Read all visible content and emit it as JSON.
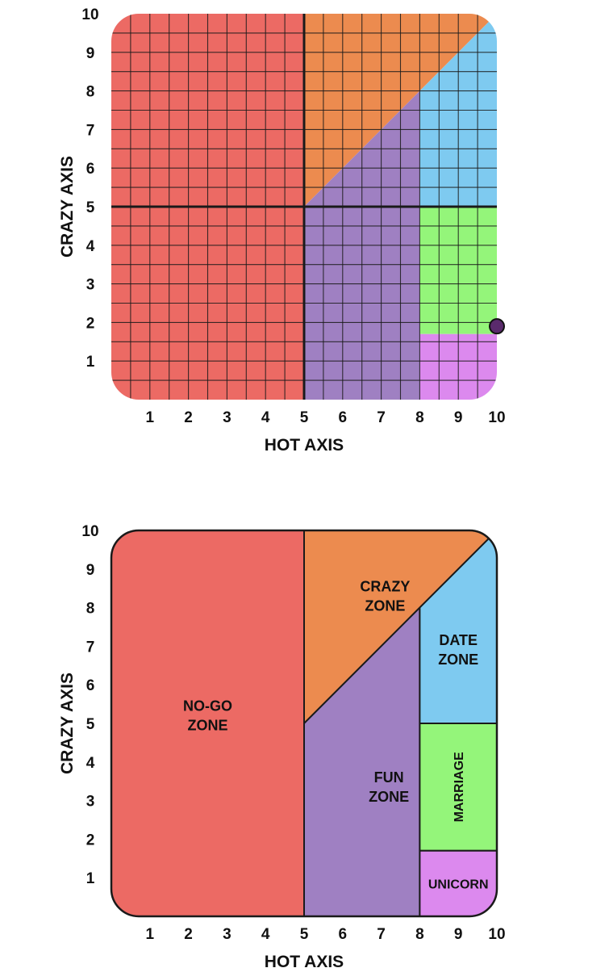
{
  "colors": {
    "nogo": "#ec6a64",
    "crazy": "#ec8b4f",
    "fun": "#9f80c2",
    "date": "#7ecaf0",
    "marriage": "#94f57a",
    "unicorn": "#dc89ee",
    "point": "#5a2a6c",
    "line": "#1a1a1a"
  },
  "chart_data": [
    {
      "type": "scatter",
      "title": "",
      "xlabel": "HOT AXIS",
      "ylabel": "CRAZY AXIS",
      "xlim": [
        0,
        10
      ],
      "ylim": [
        0,
        10
      ],
      "x_ticks": [
        "1",
        "2",
        "3",
        "4",
        "5",
        "6",
        "7",
        "8",
        "9",
        "10"
      ],
      "y_ticks": [
        "1",
        "2",
        "3",
        "4",
        "5",
        "6",
        "7",
        "8",
        "9",
        "10"
      ],
      "grid": true,
      "grid_step": 0.5,
      "zones": [
        {
          "name": "no-go",
          "color_key": "nogo",
          "polygon": [
            [
              0,
              0
            ],
            [
              5,
              0
            ],
            [
              5,
              10
            ],
            [
              0,
              10
            ]
          ]
        },
        {
          "name": "crazy",
          "color_key": "crazy",
          "polygon": [
            [
              5,
              5
            ],
            [
              5,
              10
            ],
            [
              10,
              10
            ]
          ]
        },
        {
          "name": "fun",
          "color_key": "fun",
          "polygon": [
            [
              5,
              0
            ],
            [
              8,
              0
            ],
            [
              8,
              8
            ],
            [
              5,
              5
            ]
          ]
        },
        {
          "name": "date",
          "color_key": "date",
          "polygon": [
            [
              8,
              5
            ],
            [
              10,
              5
            ],
            [
              10,
              10
            ],
            [
              8,
              8
            ]
          ]
        },
        {
          "name": "marriage",
          "color_key": "marriage",
          "polygon": [
            [
              8,
              1.7
            ],
            [
              10,
              1.7
            ],
            [
              10,
              5
            ],
            [
              8,
              5
            ]
          ]
        },
        {
          "name": "unicorn",
          "color_key": "unicorn",
          "polygon": [
            [
              8,
              0
            ],
            [
              10,
              0
            ],
            [
              10,
              1.7
            ],
            [
              8,
              1.7
            ]
          ]
        }
      ],
      "points": [
        {
          "x": 10,
          "y": 1.9
        }
      ]
    },
    {
      "type": "area",
      "title": "",
      "xlabel": "HOT AXIS",
      "ylabel": "CRAZY AXIS",
      "xlim": [
        0,
        10
      ],
      "ylim": [
        0,
        10
      ],
      "x_ticks": [
        "1",
        "2",
        "3",
        "4",
        "5",
        "6",
        "7",
        "8",
        "9",
        "10"
      ],
      "y_ticks": [
        "1",
        "2",
        "3",
        "4",
        "5",
        "6",
        "7",
        "8",
        "9",
        "10"
      ],
      "grid": false,
      "zones": [
        {
          "name": "no-go",
          "color_key": "nogo",
          "polygon": [
            [
              0,
              0
            ],
            [
              5,
              0
            ],
            [
              5,
              10
            ],
            [
              0,
              10
            ]
          ]
        },
        {
          "name": "crazy",
          "color_key": "crazy",
          "polygon": [
            [
              5,
              5
            ],
            [
              5,
              10
            ],
            [
              10,
              10
            ]
          ]
        },
        {
          "name": "fun",
          "color_key": "fun",
          "polygon": [
            [
              5,
              0
            ],
            [
              8,
              0
            ],
            [
              8,
              8
            ],
            [
              5,
              5
            ]
          ]
        },
        {
          "name": "date",
          "color_key": "date",
          "polygon": [
            [
              8,
              5
            ],
            [
              10,
              5
            ],
            [
              10,
              10
            ],
            [
              8,
              8
            ]
          ]
        },
        {
          "name": "marriage",
          "color_key": "marriage",
          "polygon": [
            [
              8,
              1.7
            ],
            [
              10,
              1.7
            ],
            [
              10,
              5
            ],
            [
              8,
              5
            ]
          ]
        },
        {
          "name": "unicorn",
          "color_key": "unicorn",
          "polygon": [
            [
              8,
              0
            ],
            [
              10,
              0
            ],
            [
              10,
              1.7
            ],
            [
              8,
              1.7
            ]
          ]
        }
      ],
      "zone_labels": [
        {
          "zone": "no-go",
          "lines": [
            "NO-GO",
            "ZONE"
          ]
        },
        {
          "zone": "crazy",
          "lines": [
            "CRAZY",
            "ZONE"
          ]
        },
        {
          "zone": "date",
          "lines": [
            "DATE",
            "ZONE"
          ]
        },
        {
          "zone": "fun",
          "lines": [
            "FUN",
            "ZONE"
          ]
        },
        {
          "zone": "marriage",
          "lines": [
            "MARRIAGE"
          ],
          "rotated": true
        },
        {
          "zone": "unicorn",
          "lines": [
            "UNICORN"
          ]
        }
      ]
    }
  ]
}
